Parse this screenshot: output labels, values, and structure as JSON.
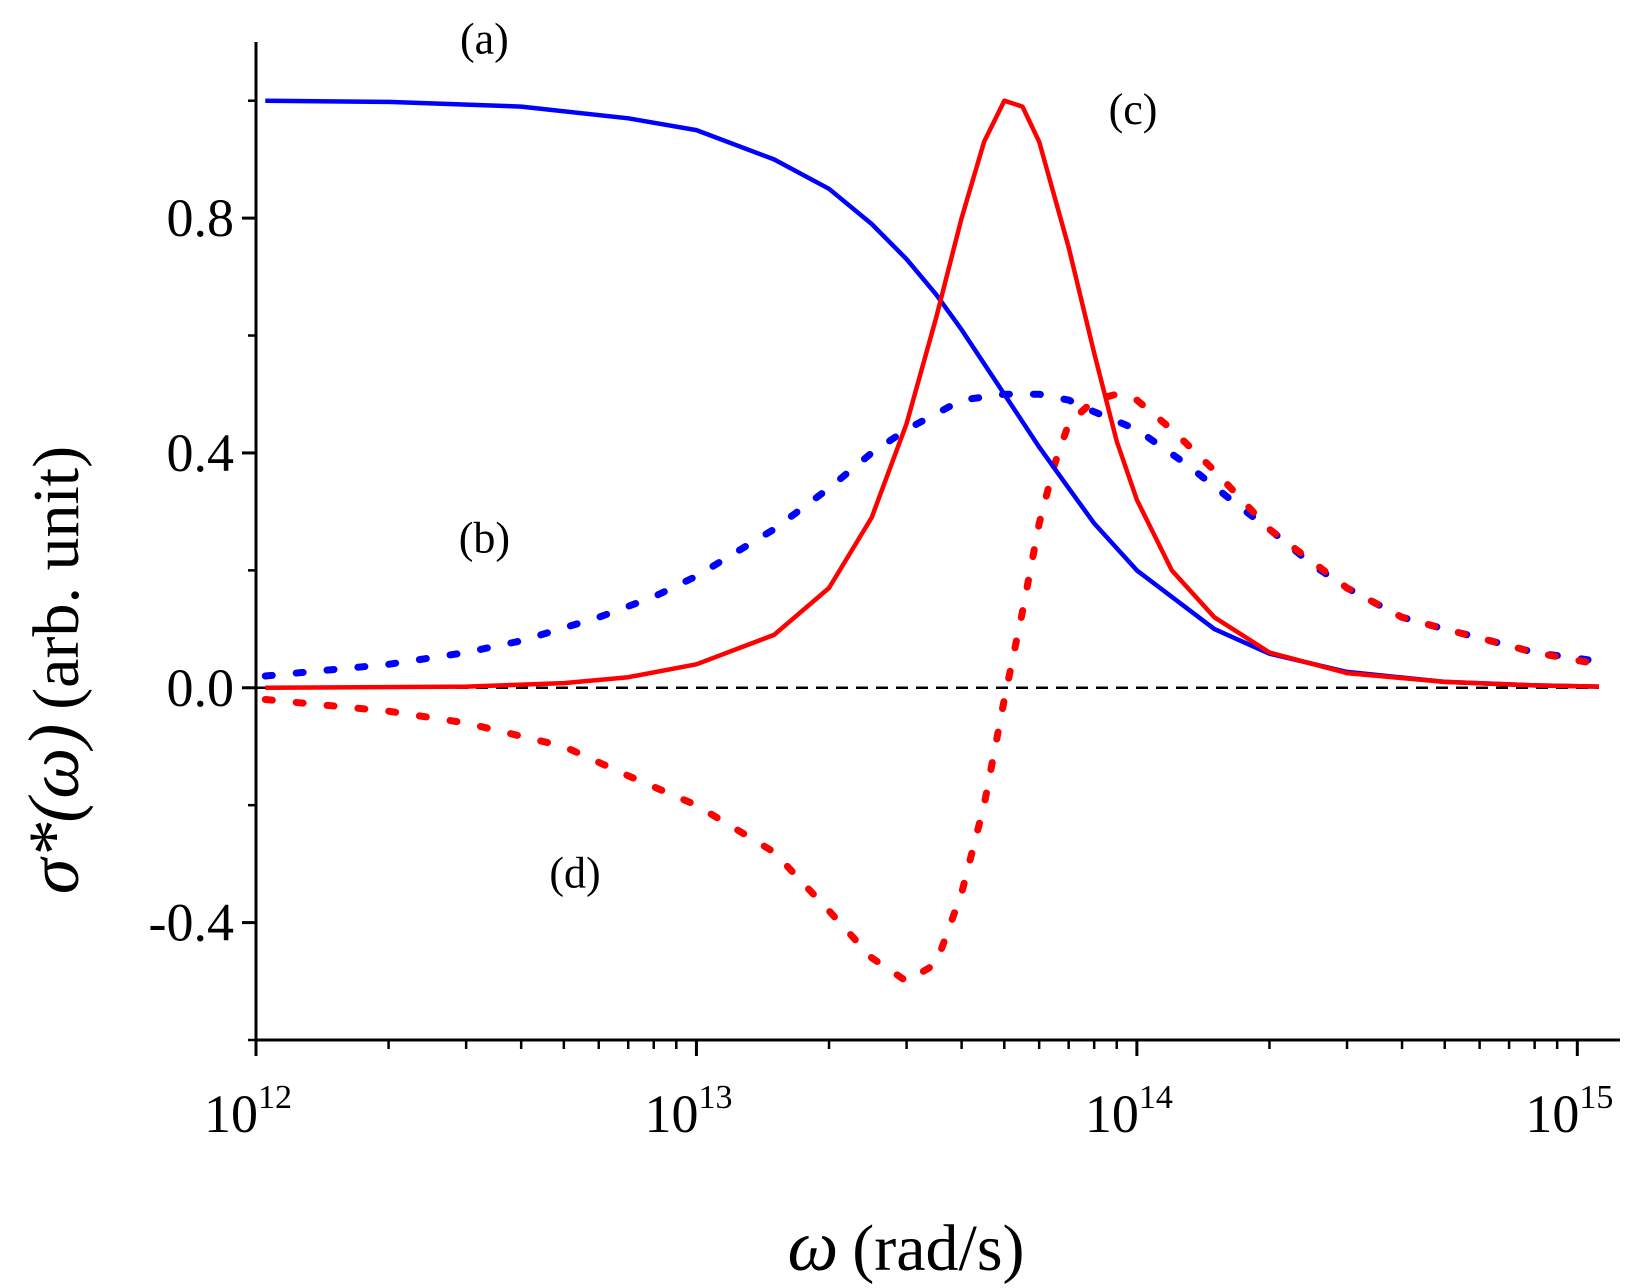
{
  "chart_data": {
    "type": "line",
    "title": "",
    "xlabel": {
      "symbol": "ω",
      "text": "(rad/s)"
    },
    "ylabel": {
      "symbol": "σ*(ω)",
      "text": "(arb. unit)"
    },
    "x_scale": "log",
    "xlim": [
      1000000000000.0,
      1250000000000000.0
    ],
    "ylim": [
      -0.6,
      1.1
    ],
    "x_ticks": [
      {
        "value": 1000000000000.0,
        "base": "10",
        "exp": "12"
      },
      {
        "value": 10000000000000.0,
        "base": "10",
        "exp": "13"
      },
      {
        "value": 100000000000000.0,
        "base": "10",
        "exp": "14"
      },
      {
        "value": 1000000000000000.0,
        "base": "10",
        "exp": "15"
      }
    ],
    "y_ticks": [
      {
        "value": 0.8,
        "label": "0.8"
      },
      {
        "value": 0.4,
        "label": "0.4"
      },
      {
        "value": 0.0,
        "label": "0.0"
      },
      {
        "value": -0.4,
        "label": "-0.4"
      }
    ],
    "reference_line": {
      "y": 0,
      "style": "dashed",
      "color": "#000000"
    },
    "series": [
      {
        "id": "a",
        "style": "solid",
        "color": "#0000ff",
        "points": [
          [
            1050000000000.0,
            1.0
          ],
          [
            2000000000000.0,
            0.998
          ],
          [
            4000000000000.0,
            0.99
          ],
          [
            7000000000000.0,
            0.97
          ],
          [
            10000000000000.0,
            0.95
          ],
          [
            15000000000000.0,
            0.9
          ],
          [
            20000000000000.0,
            0.85
          ],
          [
            25000000000000.0,
            0.79
          ],
          [
            30000000000000.0,
            0.73
          ],
          [
            35000000000000.0,
            0.67
          ],
          [
            40000000000000.0,
            0.61
          ],
          [
            50000000000000.0,
            0.5
          ],
          [
            60000000000000.0,
            0.41
          ],
          [
            70000000000000.0,
            0.34
          ],
          [
            80000000000000.0,
            0.28
          ],
          [
            100000000000000.0,
            0.2
          ],
          [
            150000000000000.0,
            0.1
          ],
          [
            200000000000000.0,
            0.058
          ],
          [
            300000000000000.0,
            0.027
          ],
          [
            500000000000000.0,
            0.01
          ],
          [
            800000000000000.0,
            0.004
          ],
          [
            1120000000000000.0,
            0.002
          ]
        ]
      },
      {
        "id": "b",
        "style": "dotted",
        "color": "#0000ff",
        "points": [
          [
            1050000000000.0,
            0.02
          ],
          [
            2000000000000.0,
            0.04
          ],
          [
            3000000000000.0,
            0.06
          ],
          [
            4000000000000.0,
            0.08
          ],
          [
            6000000000000.0,
            0.12
          ],
          [
            8000000000000.0,
            0.155
          ],
          [
            10000000000000.0,
            0.19
          ],
          [
            15000000000000.0,
            0.27
          ],
          [
            20000000000000.0,
            0.34
          ],
          [
            25000000000000.0,
            0.4
          ],
          [
            30000000000000.0,
            0.44
          ],
          [
            40000000000000.0,
            0.49
          ],
          [
            50000000000000.0,
            0.5
          ],
          [
            60000000000000.0,
            0.5
          ],
          [
            70000000000000.0,
            0.49
          ],
          [
            80000000000000.0,
            0.47
          ],
          [
            100000000000000.0,
            0.44
          ],
          [
            130000000000000.0,
            0.38
          ],
          [
            170000000000000.0,
            0.31
          ],
          [
            200000000000000.0,
            0.27
          ],
          [
            250000000000000.0,
            0.21
          ],
          [
            300000000000000.0,
            0.17
          ],
          [
            400000000000000.0,
            0.12
          ],
          [
            500000000000000.0,
            0.1
          ],
          [
            600000000000000.0,
            0.085
          ],
          [
            800000000000000.0,
            0.06
          ],
          [
            1120000000000000.0,
            0.045
          ]
        ]
      },
      {
        "id": "c",
        "style": "solid",
        "color": "#ff0000",
        "points": [
          [
            1050000000000.0,
            0.0
          ],
          [
            3000000000000.0,
            0.002
          ],
          [
            5000000000000.0,
            0.008
          ],
          [
            7000000000000.0,
            0.018
          ],
          [
            10000000000000.0,
            0.04
          ],
          [
            15000000000000.0,
            0.09
          ],
          [
            20000000000000.0,
            0.17
          ],
          [
            25000000000000.0,
            0.29
          ],
          [
            30000000000000.0,
            0.45
          ],
          [
            35000000000000.0,
            0.63
          ],
          [
            40000000000000.0,
            0.8
          ],
          [
            45000000000000.0,
            0.93
          ],
          [
            50000000000000.0,
            1.0
          ],
          [
            55000000000000.0,
            0.99
          ],
          [
            60000000000000.0,
            0.93
          ],
          [
            70000000000000.0,
            0.75
          ],
          [
            80000000000000.0,
            0.57
          ],
          [
            90000000000000.0,
            0.42
          ],
          [
            100000000000000.0,
            0.32
          ],
          [
            120000000000000.0,
            0.2
          ],
          [
            150000000000000.0,
            0.12
          ],
          [
            200000000000000.0,
            0.06
          ],
          [
            300000000000000.0,
            0.025
          ],
          [
            500000000000000.0,
            0.01
          ],
          [
            800000000000000.0,
            0.004
          ],
          [
            1120000000000000.0,
            0.002
          ]
        ]
      },
      {
        "id": "d",
        "style": "dotted",
        "color": "#ff0000",
        "points": [
          [
            1050000000000.0,
            -0.02
          ],
          [
            2000000000000.0,
            -0.04
          ],
          [
            3000000000000.0,
            -0.06
          ],
          [
            5000000000000.0,
            -0.1
          ],
          [
            7000000000000.0,
            -0.15
          ],
          [
            10000000000000.0,
            -0.2
          ],
          [
            15000000000000.0,
            -0.28
          ],
          [
            20000000000000.0,
            -0.38
          ],
          [
            25000000000000.0,
            -0.46
          ],
          [
            30000000000000.0,
            -0.5
          ],
          [
            35000000000000.0,
            -0.47
          ],
          [
            40000000000000.0,
            -0.35
          ],
          [
            45000000000000.0,
            -0.2
          ],
          [
            50000000000000.0,
            -0.02
          ],
          [
            55000000000000.0,
            0.13
          ],
          [
            60000000000000.0,
            0.28
          ],
          [
            65000000000000.0,
            0.38
          ],
          [
            70000000000000.0,
            0.45
          ],
          [
            80000000000000.0,
            0.49
          ],
          [
            90000000000000.0,
            0.5
          ],
          [
            100000000000000.0,
            0.49
          ],
          [
            120000000000000.0,
            0.44
          ],
          [
            150000000000000.0,
            0.37
          ],
          [
            200000000000000.0,
            0.27
          ],
          [
            300000000000000.0,
            0.17
          ],
          [
            400000000000000.0,
            0.12
          ],
          [
            500000000000000.0,
            0.1
          ],
          [
            600000000000000.0,
            0.085
          ],
          [
            800000000000000.0,
            0.06
          ],
          [
            1120000000000000.0,
            0.04
          ]
        ]
      }
    ],
    "annotations": [
      {
        "text": "(a)",
        "x": 3300000000000.0,
        "y": 1.08
      },
      {
        "text": "(b)",
        "x": 3300000000000.0,
        "y": 0.23
      },
      {
        "text": "(c)",
        "x": 98000000000000.0,
        "y": 0.96
      },
      {
        "text": "(d)",
        "x": 5300000000000.0,
        "y": -0.34
      }
    ]
  }
}
